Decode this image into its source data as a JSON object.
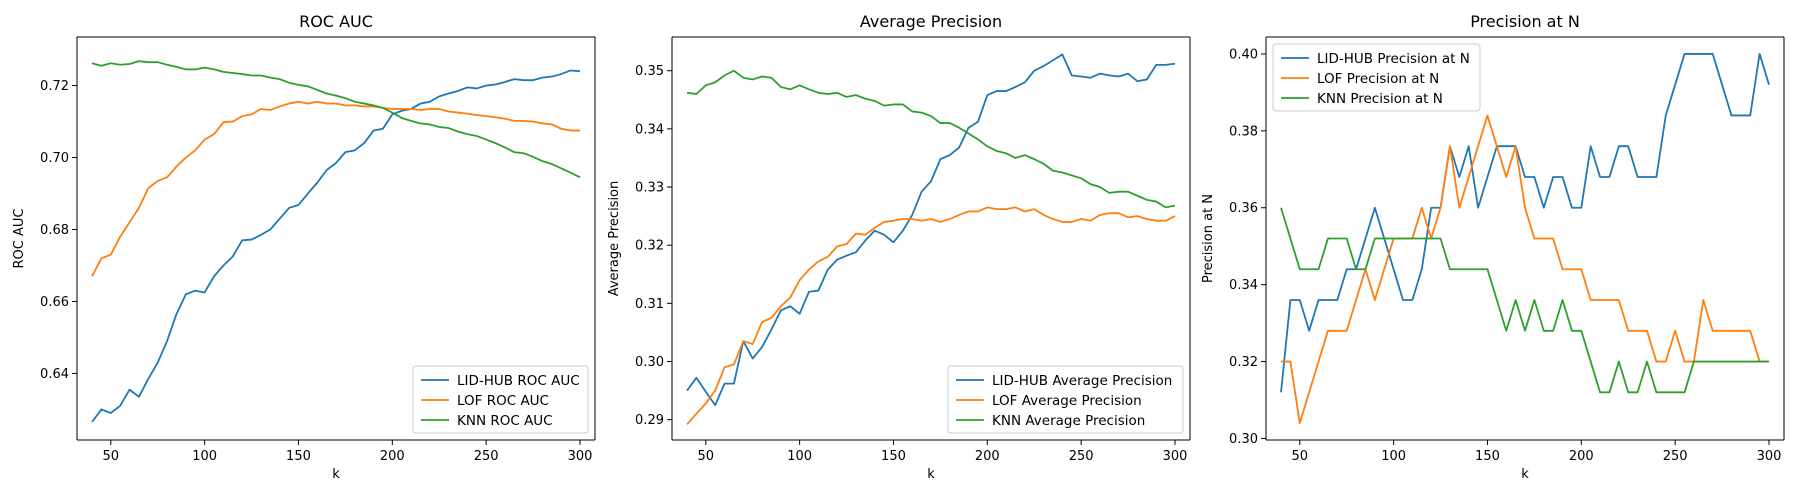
{
  "colors": {
    "lid": "#1f77b4",
    "lof": "#ff7f0e",
    "knn": "#2ca02c"
  },
  "chart_data": [
    {
      "type": "line",
      "title": "ROC AUC",
      "xlabel": "k",
      "ylabel": "ROC AUC",
      "xlim": [
        32,
        308
      ],
      "ylim": [
        0.6215,
        0.7335
      ],
      "xticks": [
        50,
        100,
        150,
        200,
        250,
        300
      ],
      "yticks": [
        0.64,
        0.66,
        0.68,
        0.7,
        0.72
      ],
      "ytick_labels": [
        "0.64",
        "0.66",
        "0.68",
        "0.70",
        "0.72"
      ],
      "legend_position": "lower-right",
      "x": [
        40,
        45,
        50,
        55,
        60,
        65,
        70,
        75,
        80,
        85,
        90,
        95,
        100,
        105,
        110,
        115,
        120,
        125,
        130,
        135,
        140,
        145,
        150,
        155,
        160,
        165,
        170,
        175,
        180,
        185,
        190,
        195,
        200,
        205,
        210,
        215,
        220,
        225,
        230,
        235,
        240,
        245,
        250,
        255,
        260,
        265,
        270,
        275,
        280,
        285,
        290,
        295,
        300
      ],
      "series": [
        {
          "name": "LID-HUB ROC AUC",
          "color_key": "lid",
          "values": [
            0.6265,
            0.63,
            0.629,
            0.631,
            0.6355,
            0.6335,
            0.6385,
            0.643,
            0.649,
            0.6565,
            0.662,
            0.663,
            0.6625,
            0.667,
            0.67,
            0.6725,
            0.677,
            0.6772,
            0.6785,
            0.68,
            0.683,
            0.686,
            0.6868,
            0.69,
            0.693,
            0.6965,
            0.6985,
            0.7015,
            0.702,
            0.704,
            0.7075,
            0.708,
            0.712,
            0.713,
            0.7135,
            0.715,
            0.7155,
            0.717,
            0.7178,
            0.7185,
            0.7195,
            0.7192,
            0.72,
            0.7203,
            0.721,
            0.7218,
            0.7215,
            0.7215,
            0.7222,
            0.7225,
            0.7232,
            0.7242,
            0.724
          ]
        },
        {
          "name": "LOF ROC AUC",
          "color_key": "lof",
          "values": [
            0.667,
            0.672,
            0.673,
            0.678,
            0.682,
            0.686,
            0.6915,
            0.6935,
            0.6945,
            0.6975,
            0.7,
            0.702,
            0.705,
            0.7065,
            0.7098,
            0.71,
            0.7115,
            0.712,
            0.7135,
            0.7132,
            0.7142,
            0.715,
            0.7155,
            0.715,
            0.7155,
            0.715,
            0.715,
            0.7145,
            0.7145,
            0.7142,
            0.7142,
            0.7138,
            0.7135,
            0.7135,
            0.7135,
            0.7132,
            0.7135,
            0.7135,
            0.7128,
            0.7125,
            0.7122,
            0.7118,
            0.7115,
            0.7112,
            0.7108,
            0.7102,
            0.7102,
            0.71,
            0.7095,
            0.7092,
            0.708,
            0.7075,
            0.7075
          ]
        },
        {
          "name": "KNN ROC AUC",
          "color_key": "knn",
          "values": [
            0.7262,
            0.7255,
            0.7262,
            0.7258,
            0.726,
            0.7268,
            0.7265,
            0.7265,
            0.7258,
            0.7252,
            0.7245,
            0.7245,
            0.725,
            0.7245,
            0.7238,
            0.7235,
            0.7232,
            0.7228,
            0.7228,
            0.7222,
            0.7218,
            0.7208,
            0.7202,
            0.7198,
            0.7188,
            0.7178,
            0.7172,
            0.7165,
            0.7155,
            0.715,
            0.7145,
            0.7138,
            0.7125,
            0.711,
            0.7102,
            0.7095,
            0.7092,
            0.7085,
            0.7082,
            0.7072,
            0.7065,
            0.706,
            0.705,
            0.704,
            0.7028,
            0.7015,
            0.7012,
            0.7002,
            0.699,
            0.6982,
            0.697,
            0.6958,
            0.6945
          ]
        }
      ]
    },
    {
      "type": "line",
      "title": "Average Precision",
      "xlabel": "k",
      "ylabel": "Average Precision",
      "xlim": [
        32,
        308
      ],
      "ylim": [
        0.2865,
        0.3558
      ],
      "xticks": [
        50,
        100,
        150,
        200,
        250,
        300
      ],
      "yticks": [
        0.29,
        0.3,
        0.31,
        0.32,
        0.33,
        0.34,
        0.35
      ],
      "ytick_labels": [
        "0.29",
        "0.30",
        "0.31",
        "0.32",
        "0.33",
        "0.34",
        "0.35"
      ],
      "legend_position": "lower-right",
      "x": [
        40,
        45,
        50,
        55,
        60,
        65,
        70,
        75,
        80,
        85,
        90,
        95,
        100,
        105,
        110,
        115,
        120,
        125,
        130,
        135,
        140,
        145,
        150,
        155,
        160,
        165,
        170,
        175,
        180,
        185,
        190,
        195,
        200,
        205,
        210,
        215,
        220,
        225,
        230,
        235,
        240,
        245,
        250,
        255,
        260,
        265,
        270,
        275,
        280,
        285,
        290,
        295,
        300
      ],
      "series": [
        {
          "name": "LID-HUB Average Precision",
          "color_key": "lid",
          "values": [
            0.295,
            0.2972,
            0.2948,
            0.2925,
            0.2962,
            0.2962,
            0.3035,
            0.3005,
            0.3025,
            0.3055,
            0.3088,
            0.3095,
            0.3082,
            0.312,
            0.3122,
            0.3158,
            0.3175,
            0.3182,
            0.3188,
            0.3208,
            0.3225,
            0.3218,
            0.3205,
            0.3225,
            0.3252,
            0.3292,
            0.331,
            0.3348,
            0.3355,
            0.3368,
            0.3402,
            0.3412,
            0.3458,
            0.3465,
            0.3465,
            0.3472,
            0.348,
            0.35,
            0.3508,
            0.3518,
            0.3528,
            0.3492,
            0.349,
            0.3488,
            0.3495,
            0.3492,
            0.349,
            0.3495,
            0.3482,
            0.3485,
            0.351,
            0.351,
            0.3512
          ]
        },
        {
          "name": "LOF Average Precision",
          "color_key": "lof",
          "values": [
            0.2892,
            0.291,
            0.2928,
            0.295,
            0.299,
            0.2995,
            0.3035,
            0.303,
            0.3068,
            0.3075,
            0.3095,
            0.311,
            0.314,
            0.3158,
            0.3172,
            0.318,
            0.3198,
            0.3202,
            0.322,
            0.3218,
            0.323,
            0.324,
            0.3242,
            0.3245,
            0.3245,
            0.3242,
            0.3245,
            0.324,
            0.3245,
            0.3252,
            0.3258,
            0.3258,
            0.3265,
            0.3262,
            0.3262,
            0.3265,
            0.3258,
            0.3262,
            0.3252,
            0.3245,
            0.324,
            0.324,
            0.3245,
            0.3242,
            0.3252,
            0.3255,
            0.3255,
            0.3248,
            0.325,
            0.3245,
            0.3242,
            0.3242,
            0.325
          ]
        },
        {
          "name": "KNN Average Precision",
          "color_key": "knn",
          "values": [
            0.3462,
            0.346,
            0.3475,
            0.348,
            0.3492,
            0.35,
            0.3488,
            0.3485,
            0.349,
            0.3488,
            0.3472,
            0.3468,
            0.3475,
            0.3468,
            0.3462,
            0.346,
            0.3462,
            0.3455,
            0.3458,
            0.3452,
            0.3448,
            0.344,
            0.3442,
            0.3442,
            0.343,
            0.3428,
            0.3422,
            0.341,
            0.341,
            0.3402,
            0.3392,
            0.3382,
            0.337,
            0.3362,
            0.3358,
            0.335,
            0.3355,
            0.3348,
            0.334,
            0.3328,
            0.3325,
            0.332,
            0.3315,
            0.3305,
            0.33,
            0.329,
            0.3292,
            0.3292,
            0.3285,
            0.3278,
            0.3275,
            0.3265,
            0.3268
          ]
        }
      ]
    },
    {
      "type": "line",
      "title": "Precision at N",
      "xlabel": "k",
      "ylabel": "Precision at N",
      "xlim": [
        32,
        308
      ],
      "ylim": [
        0.2996,
        0.4044
      ],
      "xticks": [
        50,
        100,
        150,
        200,
        250,
        300
      ],
      "yticks": [
        0.3,
        0.32,
        0.34,
        0.36,
        0.38,
        0.4
      ],
      "ytick_labels": [
        "0.30",
        "0.32",
        "0.34",
        "0.36",
        "0.38",
        "0.40"
      ],
      "legend_position": "upper-left",
      "x": [
        40,
        45,
        50,
        55,
        60,
        65,
        70,
        75,
        80,
        85,
        90,
        95,
        100,
        105,
        110,
        115,
        120,
        125,
        130,
        135,
        140,
        145,
        150,
        155,
        160,
        165,
        170,
        175,
        180,
        185,
        190,
        195,
        200,
        205,
        210,
        215,
        220,
        225,
        230,
        235,
        240,
        245,
        250,
        255,
        260,
        265,
        270,
        275,
        280,
        285,
        290,
        295,
        300
      ],
      "series": [
        {
          "name": "LID-HUB Precision at N",
          "color_key": "lid",
          "values": [
            0.312,
            0.336,
            0.336,
            0.328,
            0.336,
            0.336,
            0.336,
            0.344,
            0.344,
            0.352,
            0.36,
            0.352,
            0.344,
            0.336,
            0.336,
            0.344,
            0.36,
            0.36,
            0.376,
            0.368,
            0.376,
            0.36,
            0.368,
            0.376,
            0.376,
            0.376,
            0.368,
            0.368,
            0.36,
            0.368,
            0.368,
            0.36,
            0.36,
            0.376,
            0.368,
            0.368,
            0.376,
            0.376,
            0.368,
            0.368,
            0.368,
            0.384,
            0.392,
            0.4,
            0.4,
            0.4,
            0.4,
            0.392,
            0.384,
            0.384,
            0.384,
            0.4,
            0.392
          ]
        },
        {
          "name": "LOF Precision at N",
          "color_key": "lof",
          "values": [
            0.32,
            0.32,
            0.304,
            0.312,
            0.32,
            0.328,
            0.328,
            0.328,
            0.336,
            0.344,
            0.336,
            0.344,
            0.352,
            0.352,
            0.352,
            0.36,
            0.352,
            0.36,
            0.376,
            0.36,
            0.368,
            0.376,
            0.384,
            0.376,
            0.368,
            0.376,
            0.36,
            0.352,
            0.352,
            0.352,
            0.344,
            0.344,
            0.344,
            0.336,
            0.336,
            0.336,
            0.336,
            0.328,
            0.328,
            0.328,
            0.32,
            0.32,
            0.328,
            0.32,
            0.32,
            0.336,
            0.328,
            0.328,
            0.328,
            0.328,
            0.328,
            0.32,
            0.32
          ]
        },
        {
          "name": "KNN Precision at N",
          "color_key": "knn",
          "values": [
            0.36,
            0.352,
            0.344,
            0.344,
            0.344,
            0.352,
            0.352,
            0.352,
            0.344,
            0.344,
            0.352,
            0.352,
            0.352,
            0.352,
            0.352,
            0.352,
            0.352,
            0.352,
            0.344,
            0.344,
            0.344,
            0.344,
            0.344,
            0.336,
            0.328,
            0.336,
            0.328,
            0.336,
            0.328,
            0.328,
            0.336,
            0.328,
            0.328,
            0.32,
            0.312,
            0.312,
            0.32,
            0.312,
            0.312,
            0.32,
            0.312,
            0.312,
            0.312,
            0.312,
            0.32,
            0.32,
            0.32,
            0.32,
            0.32,
            0.32,
            0.32,
            0.32,
            0.32
          ]
        }
      ]
    }
  ]
}
